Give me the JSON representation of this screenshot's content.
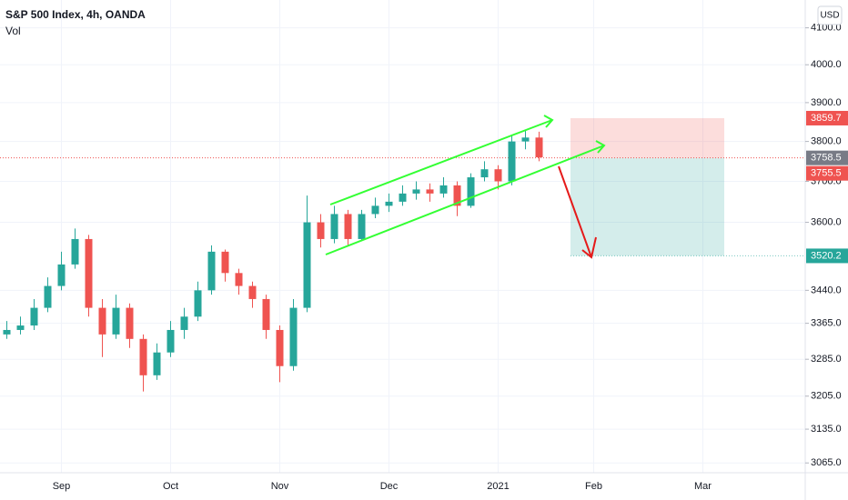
{
  "chart_data": {
    "type": "candlestick",
    "title": "S&P 500 Index, 4h, OANDA",
    "subtitle": "Vol",
    "currency": "USD",
    "categories": [
      null,
      null,
      null,
      null,
      "Sep",
      null,
      null,
      null,
      null,
      null,
      null,
      null,
      "Oct",
      null,
      null,
      null,
      null,
      null,
      null,
      null,
      "Nov",
      null,
      null,
      null,
      null,
      null,
      null,
      null,
      "Dec",
      null,
      null,
      null,
      null,
      null,
      null,
      null,
      "2021",
      null,
      null,
      null,
      null,
      null,
      null,
      "Feb",
      null,
      null,
      null,
      null,
      null,
      null,
      null,
      "Mar",
      null,
      null,
      null,
      null,
      null,
      null,
      null
    ],
    "open": [
      3340,
      3350,
      3360,
      3400,
      3450,
      3500,
      3560,
      3400,
      3340,
      3400,
      3330,
      3250,
      3300,
      3350,
      3380,
      3440,
      3530,
      3480,
      3450,
      3420,
      3350,
      3270,
      3400,
      3600,
      3560,
      3620,
      3560,
      3620,
      3640,
      3650,
      3670,
      3680,
      3670,
      3690,
      3640,
      3710,
      3730,
      3700,
      3800,
      3810,
      null,
      null,
      null,
      null,
      null,
      null,
      null,
      null,
      null,
      null,
      null,
      null,
      null,
      null,
      null,
      null,
      null,
      null,
      null
    ],
    "high": [
      3370,
      3380,
      3420,
      3470,
      3530,
      3585,
      3570,
      3420,
      3430,
      3410,
      3340,
      3320,
      3370,
      3400,
      3460,
      3545,
      3535,
      3490,
      3460,
      3430,
      3360,
      3420,
      3665,
      3620,
      3640,
      3630,
      3630,
      3660,
      3670,
      3690,
      3700,
      3695,
      3710,
      3700,
      3720,
      3750,
      3740,
      3815,
      3830,
      3825,
      null,
      null,
      null,
      null,
      null,
      null,
      null,
      null,
      null,
      null,
      null,
      null,
      null,
      null,
      null,
      null,
      null,
      null,
      null
    ],
    "low": [
      3330,
      3340,
      3350,
      3390,
      3440,
      3490,
      3380,
      3290,
      3330,
      3310,
      3215,
      3240,
      3290,
      3330,
      3370,
      3430,
      3460,
      3430,
      3400,
      3330,
      3235,
      3260,
      3390,
      3540,
      3550,
      3545,
      3555,
      3610,
      3625,
      3640,
      3655,
      3650,
      3660,
      3615,
      3635,
      3700,
      3680,
      3690,
      3780,
      3750,
      null,
      null,
      null,
      null,
      null,
      null,
      null,
      null,
      null,
      null,
      null,
      null,
      null,
      null,
      null,
      null,
      null,
      null,
      null
    ],
    "close": [
      3350,
      3360,
      3400,
      3450,
      3500,
      3560,
      3400,
      3340,
      3400,
      3330,
      3250,
      3300,
      3350,
      3380,
      3440,
      3530,
      3480,
      3450,
      3420,
      3350,
      3270,
      3400,
      3600,
      3560,
      3620,
      3560,
      3620,
      3640,
      3650,
      3670,
      3680,
      3670,
      3690,
      3640,
      3710,
      3730,
      3700,
      3800,
      3810,
      3760,
      null,
      null,
      null,
      null,
      null,
      null,
      null,
      null,
      null,
      null,
      null,
      null,
      null,
      null,
      null,
      null,
      null,
      null,
      null
    ],
    "up_color": "#26a69a",
    "down_color": "#ef5350",
    "log_scale": true,
    "grid": true,
    "ylim": [
      3045,
      4177
    ],
    "yticks": [
      {
        "value": 3065,
        "label": "3065.0"
      },
      {
        "value": 3135,
        "label": "3135.0"
      },
      {
        "value": 3205,
        "label": "3205.0"
      },
      {
        "value": 3285,
        "label": "3285.0"
      },
      {
        "value": 3365,
        "label": "3365.0"
      },
      {
        "value": 3440,
        "label": "3440.0"
      },
      {
        "value": 3600,
        "label": "3600.0"
      },
      {
        "value": 3700,
        "label": "3700.0"
      },
      {
        "value": 3800,
        "label": "3800.0"
      },
      {
        "value": 3900,
        "label": "3900.0"
      },
      {
        "value": 4000,
        "label": "4000.0"
      },
      {
        "value": 4100,
        "label": "4100.0"
      }
    ],
    "price_labels": [
      {
        "value": 3859.7,
        "label": "3859.7",
        "color": "#ef5350"
      },
      {
        "value": 3758.5,
        "label": "3758.5",
        "color": "#787b86"
      },
      {
        "value": 3755.5,
        "label": "3755.5",
        "color": "#ef5350"
      },
      {
        "value": 3520.2,
        "label": "3520.2",
        "color": "#26a69a"
      }
    ],
    "stop_loss": 3859.7,
    "entry": 3758.5,
    "take_profit": 3520.2
  }
}
